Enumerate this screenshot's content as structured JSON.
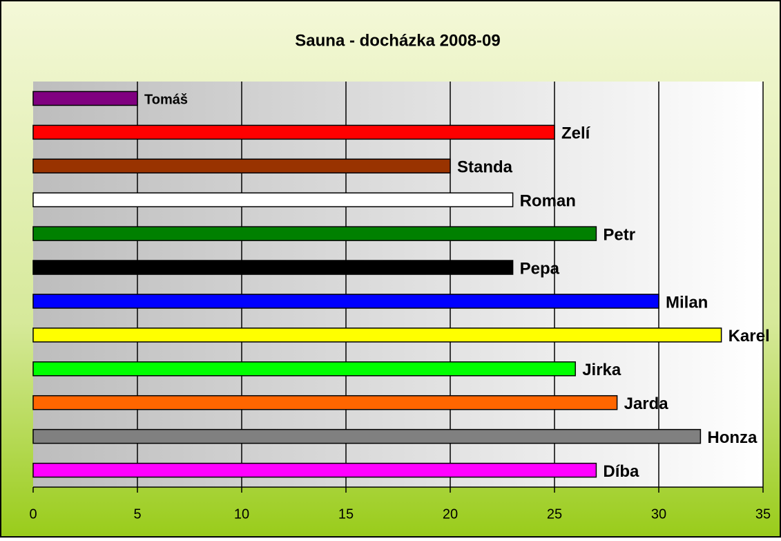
{
  "chart_data": {
    "type": "bar",
    "orientation": "horizontal",
    "title": "Sauna - docházka 2008-09",
    "categories": [
      "Tomáš",
      "Zelí",
      "Standa",
      "Roman",
      "Petr",
      "Pepa",
      "Milan",
      "Karel",
      "Jirka",
      "Jarda",
      "Honza",
      "Díba"
    ],
    "values": [
      5,
      25,
      20,
      23,
      27,
      23,
      30,
      33,
      26,
      28,
      32,
      27
    ],
    "colors": [
      "#800080",
      "#ff0000",
      "#993300",
      "#ffffff",
      "#008000",
      "#000000",
      "#0000ff",
      "#ffff00",
      "#00ff00",
      "#ff6600",
      "#808080",
      "#ff00ff"
    ],
    "xlim": [
      0,
      35
    ],
    "xticks": [
      0,
      5,
      10,
      15,
      20,
      25,
      30,
      35
    ],
    "grid": true
  }
}
